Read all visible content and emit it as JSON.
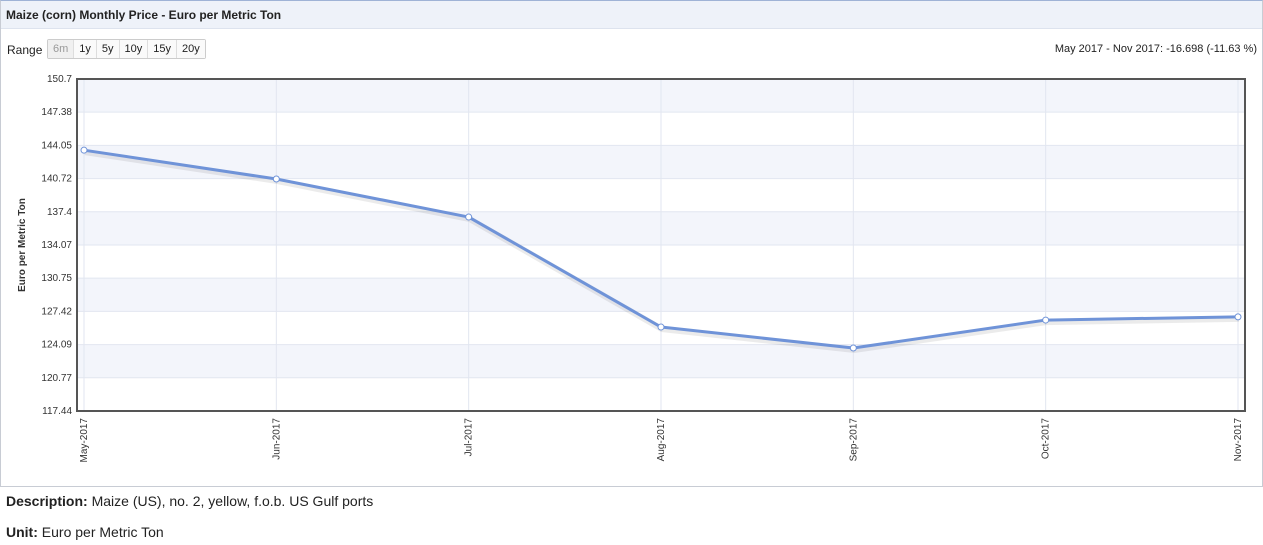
{
  "header": {
    "title": "Maize (corn) Monthly Price - Euro per Metric Ton"
  },
  "range": {
    "label": "Range",
    "buttons": [
      "6m",
      "1y",
      "5y",
      "10y",
      "15y",
      "20y"
    ],
    "summary": "May 2017 - Nov 2017: -16.698 (-11.63 %)"
  },
  "chart_data": {
    "type": "line",
    "y_label": "Euro per Metric Ton",
    "categories": [
      "May-2017",
      "Jun-2017",
      "Jul-2017",
      "Aug-2017",
      "Sep-2017",
      "Oct-2017",
      "Nov-2017"
    ],
    "values": [
      143.57,
      140.68,
      136.87,
      125.85,
      123.75,
      126.55,
      126.87
    ],
    "color": "#6f93d8",
    "ylim": [
      117.44,
      150.7
    ],
    "yticks": [
      150.7,
      147.38,
      144.05,
      140.72,
      137.4,
      134.07,
      130.75,
      127.42,
      124.09,
      120.77,
      117.44
    ],
    "grid": true
  },
  "footer": {
    "description_label": "Description:",
    "description": "Maize (US), no. 2, yellow, f.o.b. US Gulf ports",
    "unit_label": "Unit:",
    "unit": "Euro per Metric Ton"
  }
}
